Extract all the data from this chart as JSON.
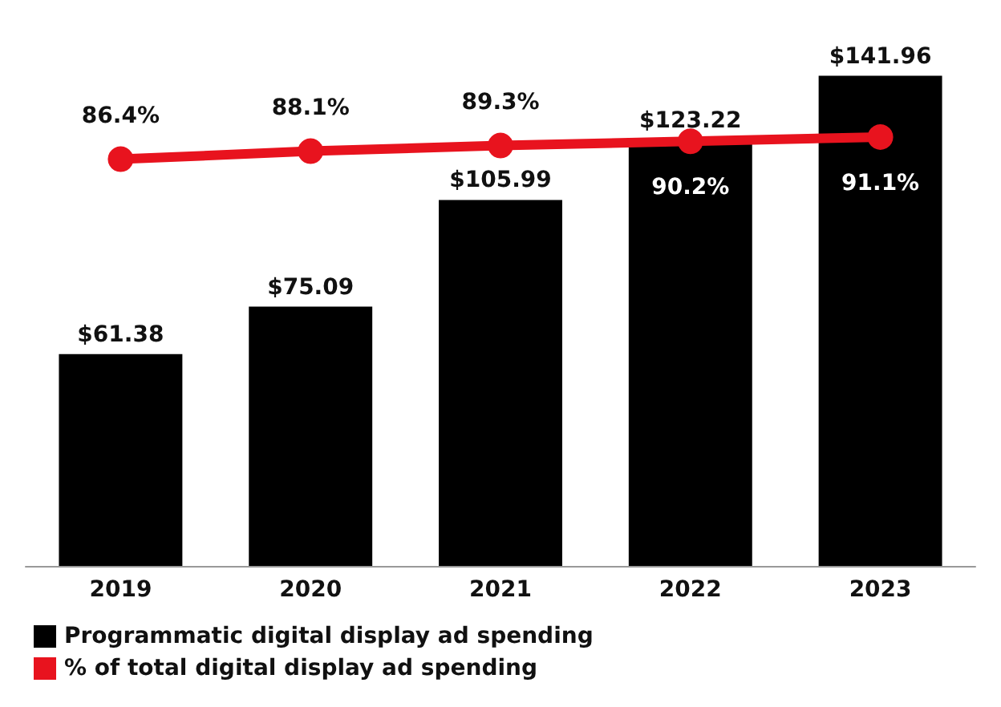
{
  "chart_data": {
    "type": "bar",
    "categories": [
      "2019",
      "2020",
      "2021",
      "2022",
      "2023"
    ],
    "series": [
      {
        "name": "Programmatic digital display ad spending",
        "color": "#000000",
        "values": [
          61.38,
          75.09,
          105.99,
          123.22,
          141.96
        ],
        "value_labels": [
          "$61.38",
          "$75.09",
          "$105.99",
          "$123.22",
          "$141.96"
        ]
      },
      {
        "name": "% of total digital display ad spending",
        "type": "line",
        "axis": "y2",
        "color": "#e8131e",
        "values": [
          86.4,
          88.1,
          89.3,
          90.2,
          91.1
        ],
        "value_labels": [
          "86.4%",
          "88.1%",
          "89.3%",
          "90.2%",
          "91.1%"
        ]
      }
    ],
    "tick_labels": "x",
    "grid": false,
    "legend": "bottom left",
    "marker": "circle",
    "line_style": "solid"
  }
}
